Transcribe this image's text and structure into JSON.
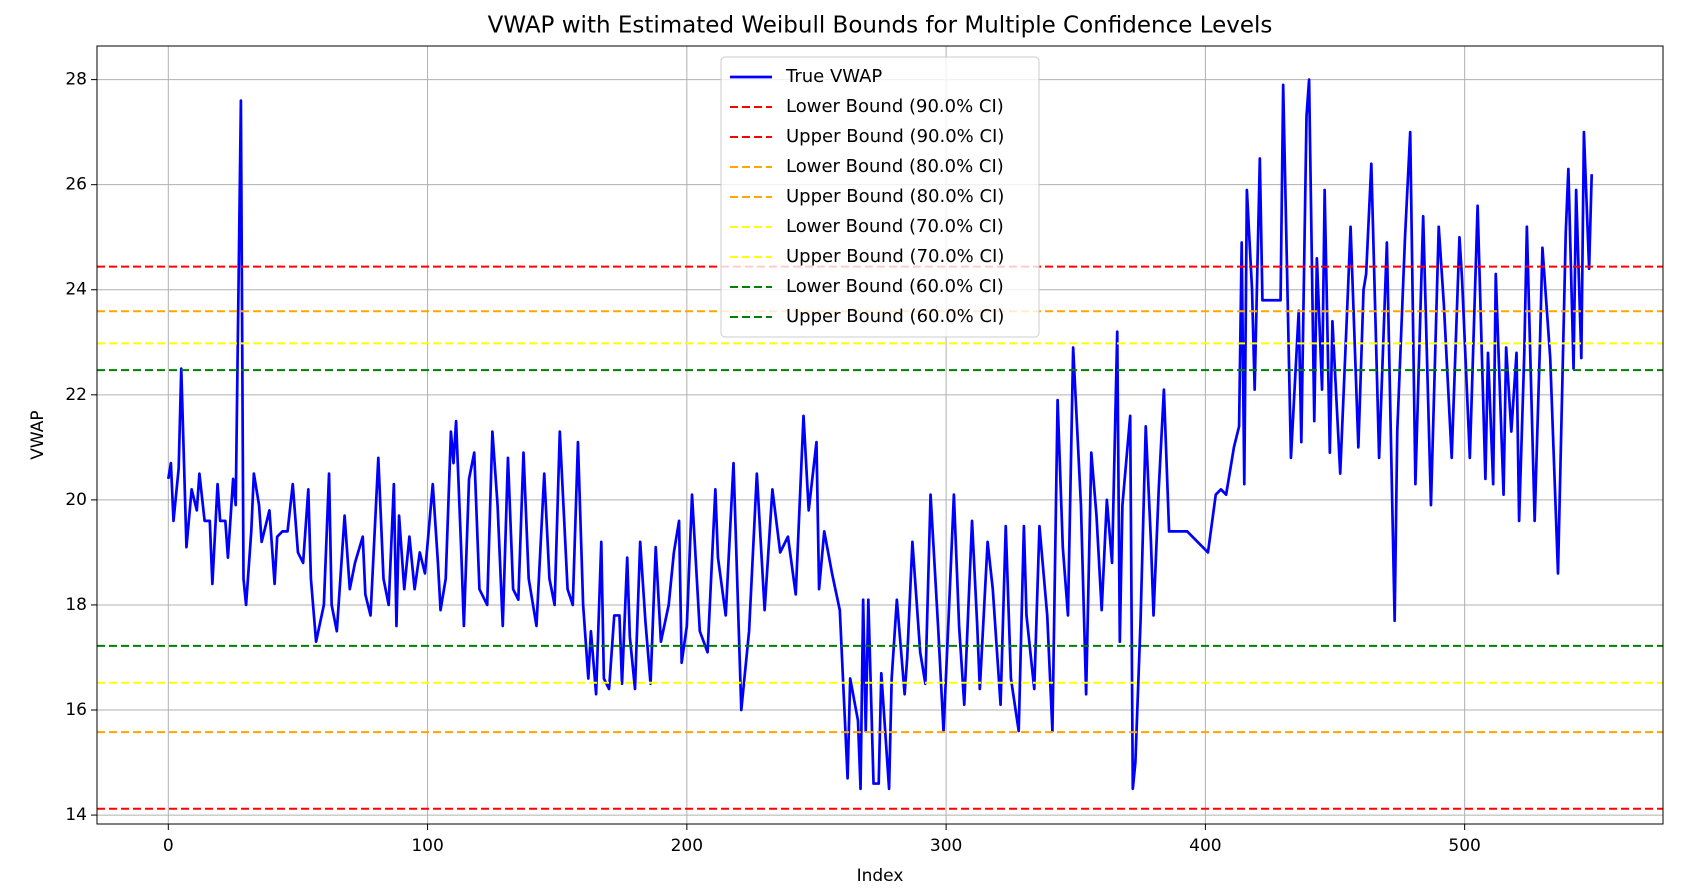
{
  "chart_data": {
    "type": "line",
    "title": "VWAP with Estimated Weibull Bounds for Multiple Confidence Levels",
    "xlabel": "Index",
    "ylabel": "VWAP",
    "x": [
      0,
      1,
      2,
      4,
      5,
      7,
      9,
      11,
      12,
      14,
      16,
      17,
      19,
      20,
      22,
      23,
      25,
      26,
      28,
      29,
      30,
      32,
      33,
      35,
      36,
      39,
      41,
      42,
      44,
      46,
      48,
      50,
      52,
      54,
      55,
      57,
      60,
      62,
      63,
      65,
      68,
      70,
      72,
      75,
      76,
      78,
      81,
      83,
      85,
      87,
      88,
      89,
      91,
      93,
      95,
      97,
      99,
      102,
      104,
      105,
      107,
      109,
      110,
      111,
      113,
      114,
      116,
      118,
      120,
      123,
      125,
      127,
      129,
      131,
      133,
      135,
      137,
      139,
      142,
      145,
      147,
      149,
      151,
      154,
      156,
      158,
      160,
      162,
      163,
      165,
      167,
      168,
      170,
      172,
      174,
      175,
      177,
      178,
      180,
      182,
      184,
      186,
      188,
      190,
      193,
      195,
      197,
      198,
      200,
      202,
      205,
      208,
      211,
      212,
      215,
      218,
      221,
      224,
      227,
      230,
      233,
      236,
      239,
      242,
      245,
      247,
      250,
      251,
      253,
      256,
      259,
      262,
      263,
      266,
      267,
      268,
      269,
      270,
      272,
      274,
      275,
      278,
      279,
      281,
      284,
      285,
      287,
      290,
      292,
      294,
      297,
      299,
      301,
      303,
      305,
      307,
      310,
      312,
      313,
      316,
      318,
      321,
      323,
      325,
      328,
      330,
      331,
      334,
      336,
      339,
      341,
      343,
      345,
      347,
      349,
      352,
      354,
      356,
      358,
      360,
      362,
      364,
      366,
      367,
      368,
      371,
      372,
      373,
      375,
      377,
      379,
      380,
      382,
      384,
      386,
      387,
      390,
      393,
      397,
      401,
      404,
      406,
      408,
      411,
      413,
      414,
      415,
      416,
      418,
      419,
      421,
      422,
      426,
      429,
      430,
      433,
      436,
      437,
      439,
      440,
      442,
      443,
      445,
      446,
      448,
      449,
      452,
      455,
      456,
      459,
      461,
      462,
      464,
      467,
      470,
      473,
      474,
      477,
      479,
      481,
      484,
      487,
      490,
      492,
      495,
      498,
      499,
      502,
      505,
      508,
      509,
      511,
      512,
      515,
      516,
      518,
      520,
      521,
      523,
      524,
      527,
      529,
      530,
      533,
      536,
      539,
      540,
      542,
      543,
      545,
      546,
      548,
      549
    ],
    "series": [
      {
        "name": "True VWAP",
        "color": "#0000ff",
        "values": [
          20.4,
          20.7,
          19.6,
          20.6,
          22.5,
          19.1,
          20.2,
          19.8,
          20.5,
          19.6,
          19.6,
          18.4,
          20.3,
          19.6,
          19.6,
          18.9,
          20.4,
          19.9,
          27.6,
          18.5,
          18.0,
          19.4,
          20.5,
          19.9,
          19.2,
          19.8,
          18.4,
          19.3,
          19.4,
          19.4,
          20.3,
          19.0,
          18.8,
          20.2,
          18.5,
          17.3,
          18.0,
          20.5,
          18.0,
          17.5,
          19.7,
          18.3,
          18.8,
          19.3,
          18.2,
          17.8,
          20.8,
          18.5,
          18.0,
          20.3,
          17.6,
          19.7,
          18.3,
          19.3,
          18.3,
          19.0,
          18.6,
          20.3,
          18.8,
          17.9,
          18.5,
          21.3,
          20.7,
          21.5,
          19.0,
          17.6,
          20.4,
          20.9,
          18.3,
          18.0,
          21.3,
          19.9,
          17.6,
          20.8,
          18.3,
          18.1,
          20.9,
          18.5,
          17.6,
          20.5,
          18.5,
          18.0,
          21.3,
          18.3,
          18.0,
          21.1,
          18.0,
          16.6,
          17.5,
          16.3,
          19.2,
          16.6,
          16.4,
          17.8,
          17.8,
          16.5,
          18.9,
          17.4,
          16.4,
          19.2,
          17.7,
          16.5,
          19.1,
          17.3,
          18.0,
          19.0,
          19.6,
          16.9,
          17.6,
          20.1,
          17.5,
          17.1,
          20.2,
          18.9,
          17.8,
          20.7,
          16.0,
          17.5,
          20.5,
          17.9,
          20.2,
          19.0,
          19.3,
          18.2,
          21.6,
          19.8,
          21.1,
          18.3,
          19.4,
          18.6,
          17.9,
          14.7,
          16.6,
          15.8,
          14.5,
          18.1,
          15.6,
          18.1,
          14.6,
          14.6,
          16.7,
          14.5,
          16.6,
          18.1,
          16.3,
          17.0,
          19.2,
          17.1,
          16.5,
          20.1,
          17.5,
          15.6,
          17.8,
          20.1,
          17.6,
          16.1,
          19.6,
          17.6,
          16.4,
          19.2,
          18.3,
          16.1,
          19.5,
          16.6,
          15.6,
          19.5,
          17.8,
          16.4,
          19.5,
          17.8,
          15.6,
          21.9,
          19.1,
          17.8,
          22.9,
          19.9,
          16.3,
          20.9,
          19.7,
          17.9,
          20.0,
          18.8,
          23.2,
          17.3,
          19.9,
          21.6,
          14.5,
          15.0,
          17.7,
          21.4,
          19.2,
          17.8,
          20.2,
          22.1,
          19.4,
          19.4,
          19.4,
          19.4,
          19.2,
          19.0,
          20.1,
          20.2,
          20.1,
          21.0,
          21.4,
          24.9,
          20.3,
          25.9,
          24.0,
          22.1,
          26.5,
          23.8,
          23.8,
          23.8,
          27.9,
          20.8,
          23.6,
          21.1,
          27.3,
          28.0,
          21.5,
          24.6,
          22.1,
          25.9,
          20.9,
          23.4,
          20.5,
          24.0,
          25.2,
          21.0,
          24.0,
          24.3,
          26.4,
          20.8,
          24.9,
          17.7,
          21.3,
          25.0,
          27.0,
          20.3,
          25.4,
          19.9,
          25.2,
          23.7,
          20.8,
          25.0,
          24.2,
          20.8,
          25.6,
          20.4,
          22.8,
          20.3,
          24.3,
          20.1,
          22.9,
          21.3,
          22.8,
          19.6,
          22.8,
          25.2,
          19.6,
          22.9,
          24.8,
          22.7,
          18.6,
          25.1,
          26.3,
          22.5,
          25.9,
          22.7,
          27.0,
          24.4,
          26.2
        ]
      }
    ],
    "hlines": [
      {
        "name": "Lower Bound (90.0% CI)",
        "color": "#ff0000",
        "value": 14.12,
        "linestyle": "dashed"
      },
      {
        "name": "Upper Bound (90.0% CI)",
        "color": "#ff0000",
        "value": 24.44,
        "linestyle": "dashed"
      },
      {
        "name": "Lower Bound (80.0% CI)",
        "color": "#ffa500",
        "value": 15.58,
        "linestyle": "dashed"
      },
      {
        "name": "Upper Bound (80.0% CI)",
        "color": "#ffa500",
        "value": 23.59,
        "linestyle": "dashed"
      },
      {
        "name": "Lower Bound (70.0% CI)",
        "color": "#ffff00",
        "value": 16.52,
        "linestyle": "dashed"
      },
      {
        "name": "Upper Bound (70.0% CI)",
        "color": "#ffff00",
        "value": 22.98,
        "linestyle": "dashed"
      },
      {
        "name": "Lower Bound (60.0% CI)",
        "color": "#008000",
        "value": 17.22,
        "linestyle": "dashed"
      },
      {
        "name": "Upper Bound (60.0% CI)",
        "color": "#008000",
        "value": 22.47,
        "linestyle": "dashed"
      }
    ],
    "xlim": [
      -27.5,
      576.5
    ],
    "ylim": [
      13.83,
      28.64
    ],
    "xticks": [
      0,
      100,
      200,
      300,
      400,
      500
    ],
    "yticks": [
      14,
      16,
      18,
      20,
      22,
      24,
      26,
      28
    ],
    "grid": true,
    "legend": "upper center"
  }
}
